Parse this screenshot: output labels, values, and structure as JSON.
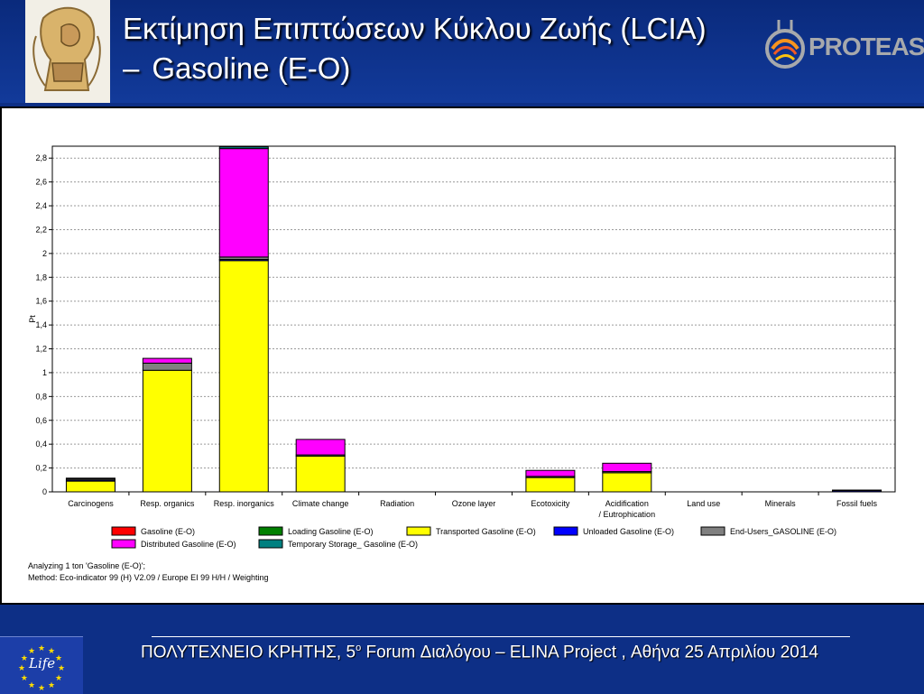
{
  "header": {
    "title_line1": "Εκτίμηση Επιπτώσεων Κύκλου Ζωής (LCIA)",
    "title_line2_dash": "–",
    "title_line2": "Gasoline (E-O)",
    "brand": "PROTEAS",
    "brand_prefix": "PROT",
    "brand_suffix": "EAS"
  },
  "chart_data": {
    "type": "bar",
    "stacked": true,
    "ylabel": "Pt",
    "ylim": [
      0,
      2.9
    ],
    "yticks": [
      {
        "value": 0,
        "label": "0"
      },
      {
        "value": 0.2,
        "label": "0,2"
      },
      {
        "value": 0.4,
        "label": "0,4"
      },
      {
        "value": 0.6,
        "label": "0,6"
      },
      {
        "value": 0.8,
        "label": "0,8"
      },
      {
        "value": 1.0,
        "label": "1"
      },
      {
        "value": 1.2,
        "label": "1,2"
      },
      {
        "value": 1.4,
        "label": "1,4"
      },
      {
        "value": 1.6,
        "label": "1,6"
      },
      {
        "value": 1.8,
        "label": "1,8"
      },
      {
        "value": 2.0,
        "label": "2"
      },
      {
        "value": 2.2,
        "label": "2,2"
      },
      {
        "value": 2.4,
        "label": "2,4"
      },
      {
        "value": 2.6,
        "label": "2,6"
      },
      {
        "value": 2.8,
        "label": "2,8"
      }
    ],
    "grid": true,
    "categories": [
      "Carcinogens",
      "Resp. organics",
      "Resp. inorganics",
      "Climate change",
      "Radiation",
      "Ozone layer",
      "Ecotoxicity",
      "Acidification\n/ Eutrophication",
      "Land use",
      "Minerals",
      "Fossil fuels"
    ],
    "series": [
      {
        "name": "Gasoline (E-O)",
        "color": "#ff0000",
        "values": [
          0,
          0,
          0,
          0,
          0,
          0,
          0,
          0,
          0,
          0,
          0
        ]
      },
      {
        "name": "Loading Gasoline (E-O)",
        "color": "#008000",
        "values": [
          0,
          0,
          0,
          0,
          0,
          0,
          0,
          0,
          0,
          0,
          0
        ]
      },
      {
        "name": "Transported Gasoline (E-O)",
        "color": "#ffff00",
        "values": [
          0.09,
          1.02,
          1.94,
          0.3,
          0,
          0,
          0.12,
          0.16,
          0,
          0,
          0
        ]
      },
      {
        "name": "Unloaded Gasoline (E-O)",
        "color": "#0000ff",
        "values": [
          0.01,
          0,
          0.01,
          0,
          0,
          0,
          0,
          0,
          0,
          0,
          0.01
        ]
      },
      {
        "name": "End-Users_GASOLINE (E-O)",
        "color": "#808080",
        "values": [
          0.01,
          0.06,
          0.02,
          0.01,
          0,
          0,
          0.01,
          0.01,
          0,
          0,
          0
        ]
      },
      {
        "name": "Distributed Gasoline (E-O)",
        "color": "#ff00ff",
        "values": [
          0,
          0.04,
          0.91,
          0.13,
          0,
          0,
          0.05,
          0.07,
          0,
          0,
          0
        ]
      },
      {
        "name": "Temporary Storage_ Gasoline (E-O)",
        "color": "#008080",
        "values": [
          0.005,
          0,
          0.015,
          0,
          0,
          0,
          0,
          0,
          0,
          0,
          0.005
        ]
      }
    ],
    "legend": "bottom",
    "notes": [
      "Analyzing 1 ton 'Gasoline (E-O)';",
      "Method: Eco-indicator 99 (H) V2.09 / Europe EI 99 H/H / Weighting"
    ]
  },
  "footer": {
    "text_main": "ΠΟΛΥΤΕΧΝΕΙΟ ΚΡΗΤΗΣ, 5",
    "text_sup": "ο",
    "text_rest": "  Forum Διαλόγου – ELINA Project , Αθήνα 25 Απριλίου 2014",
    "eu_logo_text": "Life"
  }
}
